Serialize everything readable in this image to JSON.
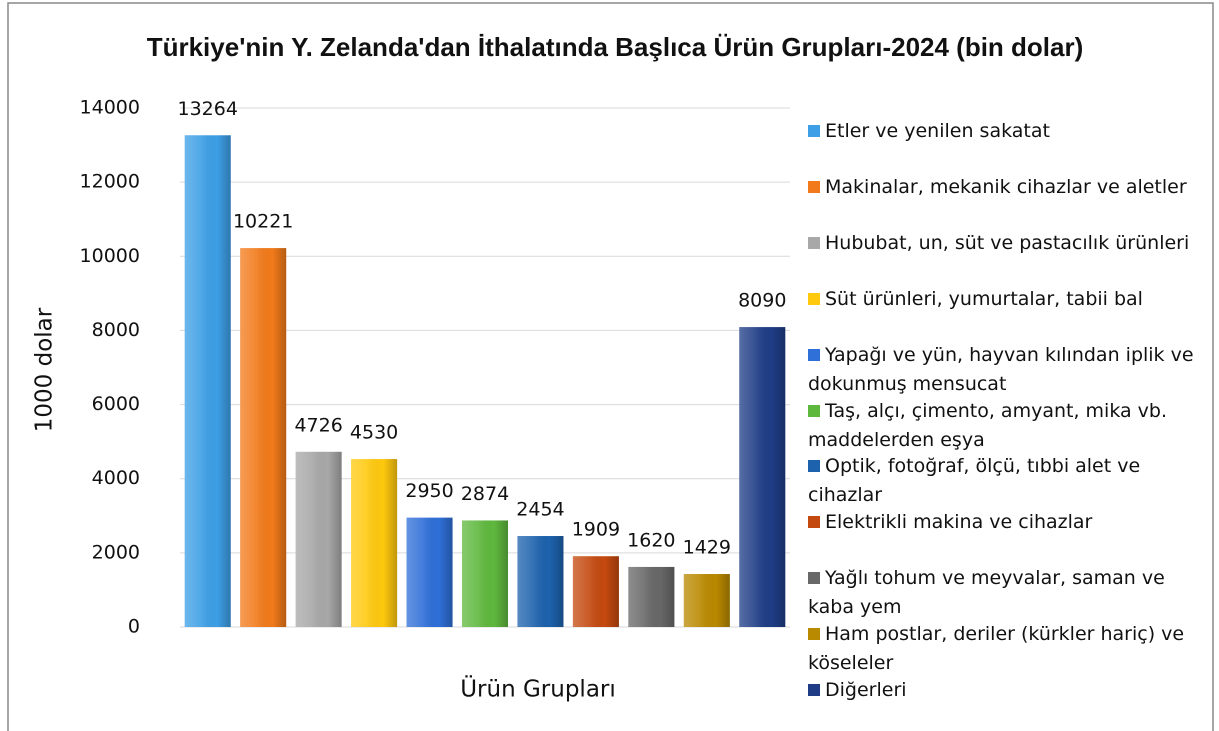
{
  "chart_data": {
    "type": "bar",
    "title": "Türkiye'nin Y. Zelanda'dan İthalatında Başlıca Ürün Grupları-2024 (bin dolar)",
    "x_label": "Ürün Grupları",
    "y_label": "1000 dolar",
    "categories": [
      "Etler ve yenilen sakatat",
      "Makinalar, mekanik cihazlar ve aletler",
      "Hububat, un, süt ve pastacılık ürünleri",
      "Süt ürünleri, yumurtalar, tabii bal",
      "Yapağı ve yün, hayvan kılından iplik ve dokunmuş mensucat",
      "Taş, alçı, çimento, amyant, mika vb. maddelerden eşya",
      "Optik, fotoğraf, ölçü, tıbbi alet ve cihazlar",
      "Elektrikli makina ve cihazlar",
      "Yağlı tohum ve meyvalar, saman ve kaba yem",
      "Ham postlar, deriler (kürkler hariç) ve köseleler",
      "Diğerleri"
    ],
    "values": [
      13264,
      10221,
      4726,
      4530,
      2950,
      2874,
      2454,
      1909,
      1620,
      1429,
      8090
    ],
    "colors": [
      "#3d9fe6",
      "#f27a1a",
      "#a8a8a8",
      "#ffc90e",
      "#2f6fd8",
      "#5fb83e",
      "#1d62ad",
      "#c4490f",
      "#686868",
      "#b98900",
      "#1f3d86"
    ],
    "ylim": [
      0,
      14000
    ],
    "yticks": [
      0,
      2000,
      4000,
      6000,
      8000,
      10000,
      12000,
      14000
    ],
    "grid": true,
    "legend": "right"
  }
}
